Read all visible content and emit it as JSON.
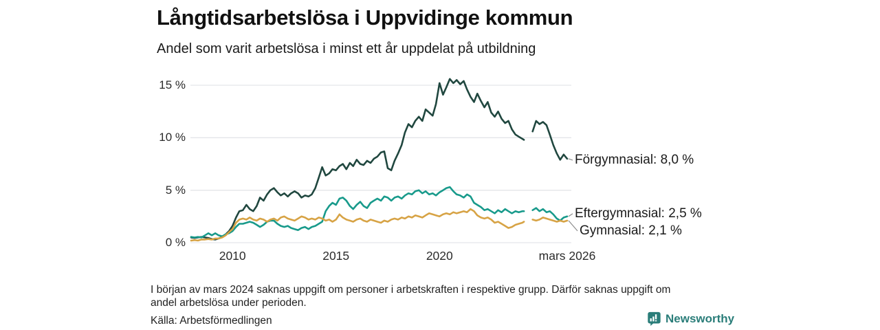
{
  "header": {
    "title": "Långtidsarbetslösa i Uppvidinge kommun",
    "subtitle": "Andel som varit arbetslösa i minst ett år uppdelat på utbildning"
  },
  "footnote": {
    "line1": "I början av mars 2024 saknas uppgift om personer i arbetskraften i respektive grupp. Därför saknas uppgift om",
    "line2": "andel arbetslösa under perioden.",
    "source": "Källa: Arbetsförmedlingen"
  },
  "brand": {
    "name": "Newsworthy",
    "color": "#2a7d79",
    "icon": "bar-chart-bubble-icon"
  },
  "chart_data": {
    "type": "line",
    "title": "Långtidsarbetslösa i Uppvidinge kommun",
    "subtitle": "Andel som varit arbetslösa i minst ett år uppdelat på utbildning",
    "xlabel": "",
    "ylabel": "",
    "legend_position": "right-end-labels",
    "y_axis": {
      "tick_labels": [
        "0 %",
        "5 %",
        "10 %",
        "15 %"
      ],
      "tick_values": [
        0,
        5,
        10,
        15
      ],
      "range": [
        0,
        16.2
      ],
      "grid": true,
      "grid_color": "#e4e5e9"
    },
    "x_axis": {
      "tick_labels": [
        "2010",
        "2015",
        "2020",
        "mars 2026"
      ],
      "tick_values": [
        2010,
        2015,
        2020,
        2026.17
      ],
      "range": [
        2008,
        2026.17
      ]
    },
    "data_gap": {
      "from": 2024.08,
      "to": 2024.5,
      "reason": "Uppgift saknas från början av mars 2024"
    },
    "x": [
      2008,
      2008.17,
      2008.33,
      2008.5,
      2008.67,
      2008.83,
      2009,
      2009.17,
      2009.33,
      2009.5,
      2009.67,
      2009.83,
      2010,
      2010.17,
      2010.33,
      2010.5,
      2010.67,
      2010.83,
      2011,
      2011.17,
      2011.33,
      2011.5,
      2011.67,
      2011.83,
      2012,
      2012.17,
      2012.33,
      2012.5,
      2012.67,
      2012.83,
      2013,
      2013.17,
      2013.33,
      2013.5,
      2013.67,
      2013.83,
      2014,
      2014.17,
      2014.33,
      2014.5,
      2014.67,
      2014.83,
      2015,
      2015.17,
      2015.33,
      2015.5,
      2015.67,
      2015.83,
      2016,
      2016.17,
      2016.33,
      2016.5,
      2016.67,
      2016.83,
      2017,
      2017.17,
      2017.33,
      2017.5,
      2017.67,
      2017.83,
      2018,
      2018.17,
      2018.33,
      2018.5,
      2018.67,
      2018.83,
      2019,
      2019.17,
      2019.33,
      2019.5,
      2019.67,
      2019.83,
      2020,
      2020.17,
      2020.33,
      2020.5,
      2020.67,
      2020.83,
      2021,
      2021.17,
      2021.33,
      2021.5,
      2021.67,
      2021.83,
      2022,
      2022.17,
      2022.33,
      2022.5,
      2022.67,
      2022.83,
      2023,
      2023.17,
      2023.33,
      2023.5,
      2023.67,
      2023.83,
      2024,
      2024.08,
      2024.5,
      2024.67,
      2024.83,
      2025,
      2025.17,
      2025.33,
      2025.5,
      2025.67,
      2025.83,
      2026,
      2026.17
    ],
    "series": [
      {
        "name": "Förgymnasial",
        "color": "#20473f",
        "end_label": "Förgymnasial: 8,0 %",
        "end_value": 8.0,
        "label_dx": 0,
        "label_dy": 2,
        "values": [
          0.5,
          0.45,
          0.5,
          0.55,
          0.5,
          0.45,
          0.35,
          0.3,
          0.4,
          0.55,
          0.8,
          1.1,
          1.6,
          2.4,
          3.0,
          3.1,
          3.6,
          3.2,
          3.0,
          3.5,
          4.3,
          4.0,
          4.6,
          5.0,
          5.2,
          4.8,
          4.5,
          4.7,
          4.4,
          4.7,
          4.9,
          4.7,
          4.3,
          4.5,
          4.4,
          4.6,
          5.2,
          6.2,
          7.2,
          6.4,
          6.6,
          7.0,
          6.9,
          7.3,
          7.5,
          7.0,
          7.6,
          7.3,
          7.9,
          7.5,
          7.4,
          7.8,
          7.6,
          8.0,
          8.2,
          8.6,
          8.7,
          7.1,
          6.9,
          7.8,
          8.5,
          9.3,
          10.5,
          11.3,
          11.0,
          11.6,
          12.0,
          11.6,
          12.7,
          12.4,
          12.1,
          13.2,
          15.2,
          14.1,
          14.8,
          15.6,
          15.2,
          15.5,
          15.1,
          15.4,
          14.6,
          13.9,
          13.4,
          14.2,
          13.5,
          12.9,
          13.4,
          12.4,
          12.0,
          12.5,
          11.8,
          11.4,
          11.6,
          10.8,
          10.3,
          10.1,
          9.9,
          9.8,
          10.6,
          11.6,
          11.3,
          11.5,
          11.2,
          10.3,
          9.3,
          8.5,
          7.9,
          8.4,
          8.0
        ]
      },
      {
        "name": "Eftergymnasial",
        "color": "#189a8b",
        "end_label": "Eftergymnasial: 2,5 %",
        "end_value": 2.5,
        "label_dx": 0,
        "label_dy": -4,
        "values": [
          0.55,
          0.5,
          0.55,
          0.5,
          0.7,
          0.9,
          0.7,
          0.9,
          0.7,
          0.6,
          0.8,
          0.9,
          1.1,
          1.5,
          1.8,
          1.8,
          1.9,
          2.0,
          1.9,
          1.7,
          1.5,
          1.7,
          2.0,
          2.1,
          2.1,
          1.8,
          1.6,
          1.5,
          1.6,
          1.4,
          1.3,
          1.2,
          1.4,
          1.5,
          1.3,
          1.5,
          1.6,
          1.8,
          2.0,
          3.0,
          3.5,
          3.8,
          3.6,
          4.2,
          4.3,
          4.0,
          3.5,
          3.2,
          3.6,
          3.9,
          3.5,
          3.3,
          3.8,
          4.0,
          4.2,
          4.0,
          4.4,
          4.3,
          4.0,
          4.3,
          4.4,
          4.2,
          4.5,
          4.7,
          4.6,
          4.9,
          5.0,
          4.7,
          4.9,
          4.6,
          4.7,
          4.5,
          4.8,
          5.0,
          5.2,
          5.3,
          4.9,
          4.6,
          4.5,
          4.3,
          4.6,
          4.4,
          3.8,
          3.6,
          3.4,
          3.1,
          3.2,
          3.0,
          2.8,
          3.1,
          2.9,
          3.2,
          3.0,
          2.8,
          3.0,
          2.9,
          3.0,
          3.0,
          3.1,
          3.3,
          3.0,
          3.2,
          2.9,
          3.0,
          2.7,
          2.3,
          2.1,
          2.4,
          2.5
        ]
      },
      {
        "name": "Gymnasial",
        "color": "#d7a345",
        "end_label": "Gymnasial: 2,1 %",
        "end_value": 2.1,
        "label_dx": 7,
        "label_dy": 15,
        "values": [
          0.2,
          0.25,
          0.2,
          0.3,
          0.3,
          0.35,
          0.3,
          0.4,
          0.4,
          0.5,
          0.7,
          1.0,
          1.3,
          1.9,
          2.2,
          2.3,
          2.2,
          2.4,
          2.2,
          2.1,
          2.3,
          2.2,
          2.0,
          2.2,
          2.3,
          2.1,
          2.4,
          2.5,
          2.3,
          2.2,
          2.1,
          2.3,
          2.5,
          2.4,
          2.2,
          2.3,
          2.2,
          2.4,
          2.3,
          2.1,
          2.2,
          2.0,
          2.2,
          2.7,
          2.4,
          2.2,
          2.1,
          2.0,
          2.2,
          2.3,
          2.1,
          2.0,
          2.2,
          2.1,
          2.0,
          1.9,
          2.1,
          2.0,
          2.2,
          2.3,
          2.2,
          2.4,
          2.3,
          2.5,
          2.4,
          2.6,
          2.5,
          2.4,
          2.6,
          2.8,
          2.7,
          2.6,
          2.5,
          2.7,
          2.8,
          2.7,
          2.9,
          2.8,
          2.9,
          3.0,
          2.9,
          3.2,
          3.0,
          2.6,
          2.4,
          2.3,
          2.4,
          2.2,
          1.9,
          2.0,
          1.8,
          1.6,
          1.4,
          1.5,
          1.7,
          1.8,
          1.9,
          2.0,
          2.2,
          2.1,
          2.2,
          2.4,
          2.3,
          2.2,
          2.1,
          2.0,
          2.1,
          2.0,
          2.1
        ]
      }
    ]
  }
}
